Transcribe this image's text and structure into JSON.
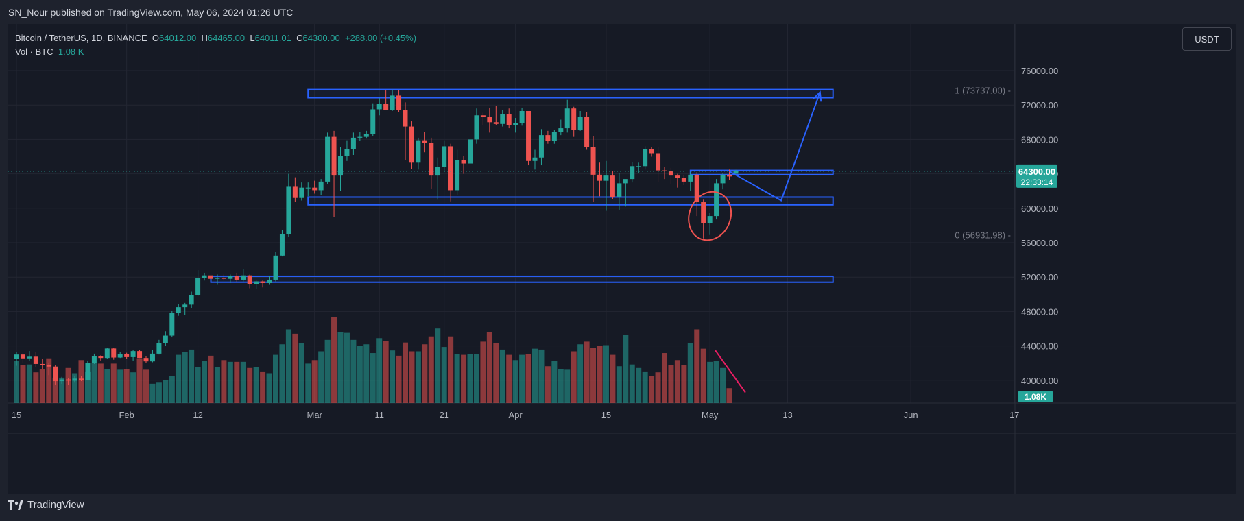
{
  "header": {
    "published": "SN_Nour published on TradingView.com, May 06, 2024 01:26 UTC"
  },
  "legend": {
    "symbol": "Bitcoin / TetherUS, 1D, BINANCE",
    "open_label": "O",
    "open": "64012.00",
    "high_label": "H",
    "high": "64465.00",
    "low_label": "L",
    "low": "64011.01",
    "close_label": "C",
    "close": "64300.00",
    "change": "+288.00 (+0.45%)",
    "vol_label": "Vol · BTC",
    "vol": "1.08 K"
  },
  "currency_button": "USDT",
  "footer": {
    "brand": "TradingView"
  },
  "colors": {
    "up": "#26a69a",
    "down": "#ef5350",
    "zone": "#2962ff",
    "background": "#161a25",
    "annotation": "#e91e63"
  },
  "chart_data": {
    "type": "candlestick",
    "title": "",
    "y_axis": {
      "ylim": [
        37500,
        79000
      ],
      "ticks": [
        "76000.00",
        "72000.00",
        "68000.00",
        "64000.00",
        "60000.00",
        "56000.00",
        "52000.00",
        "48000.00",
        "44000.00",
        "40000.00"
      ],
      "grid": true
    },
    "x_axis": {
      "ticks": [
        {
          "label": "15",
          "date": "2024-01-15"
        },
        {
          "label": "Feb",
          "date": "2024-02-01"
        },
        {
          "label": "12",
          "date": "2024-02-12"
        },
        {
          "label": "Mar",
          "date": "2024-03-01"
        },
        {
          "label": "11",
          "date": "2024-03-11"
        },
        {
          "label": "21",
          "date": "2024-03-21"
        },
        {
          "label": "Apr",
          "date": "2024-04-01"
        },
        {
          "label": "15",
          "date": "2024-04-15"
        },
        {
          "label": "May",
          "date": "2024-05-01"
        },
        {
          "label": "13",
          "date": "2024-05-13"
        },
        {
          "label": "Jun",
          "date": "2024-06-01"
        },
        {
          "label": "17",
          "date": "2024-06-17"
        }
      ]
    },
    "first_date": "2024-01-15",
    "candles": [
      [
        42500,
        43300,
        41700,
        43000
      ],
      [
        43000,
        43200,
        42000,
        42550
      ],
      [
        42550,
        43400,
        42300,
        42750
      ],
      [
        42750,
        43300,
        41500,
        41900
      ],
      [
        41900,
        42500,
        41300,
        41800
      ],
      [
        41800,
        42000,
        40600,
        41600
      ],
      [
        41600,
        41800,
        39500,
        39900
      ],
      [
        39900,
        40400,
        39600,
        40100
      ],
      [
        40100,
        40300,
        39500,
        39950
      ],
      [
        39950,
        40500,
        39800,
        40200
      ],
      [
        40200,
        40500,
        39900,
        40050
      ],
      [
        40050,
        42300,
        40000,
        42000
      ],
      [
        42000,
        43100,
        41900,
        42800
      ],
      [
        42800,
        42900,
        42300,
        42600
      ],
      [
        42600,
        43800,
        42500,
        43700
      ],
      [
        43700,
        43800,
        42400,
        42650
      ],
      [
        42650,
        43300,
        42600,
        43050
      ],
      [
        43050,
        43200,
        42500,
        42700
      ],
      [
        42700,
        43500,
        42300,
        43400
      ],
      [
        43400,
        43500,
        42600,
        42600
      ],
      [
        42600,
        42800,
        42000,
        42200
      ],
      [
        42200,
        43500,
        42100,
        43100
      ],
      [
        43100,
        44700,
        43000,
        44300
      ],
      [
        44300,
        45700,
        44000,
        45200
      ],
      [
        45200,
        48100,
        45000,
        47800
      ],
      [
        47800,
        48900,
        47500,
        48500
      ],
      [
        48500,
        49000,
        47600,
        48800
      ],
      [
        48800,
        50300,
        48400,
        49900
      ],
      [
        49900,
        52800,
        49800,
        51900
      ],
      [
        51900,
        52500,
        51600,
        52200
      ],
      [
        52200,
        52600,
        51300,
        51800
      ],
      [
        51800,
        52300,
        51100,
        51900
      ],
      [
        51900,
        52300,
        51600,
        51800
      ],
      [
        51800,
        52300,
        51300,
        52100
      ],
      [
        52100,
        52500,
        51400,
        51700
      ],
      [
        51700,
        52900,
        51500,
        52200
      ],
      [
        52200,
        52300,
        50700,
        51200
      ],
      [
        51200,
        51600,
        50600,
        51500
      ],
      [
        51500,
        51600,
        50800,
        51300
      ],
      [
        51300,
        52100,
        51100,
        51700
      ],
      [
        51700,
        54900,
        51500,
        54500
      ],
      [
        54500,
        57500,
        54400,
        57000
      ],
      [
        57000,
        64000,
        56700,
        62500
      ],
      [
        62500,
        63600,
        60700,
        61200
      ],
      [
        61200,
        63000,
        60900,
        62400
      ],
      [
        62400,
        63000,
        61400,
        62400
      ],
      [
        62400,
        63200,
        61700,
        62100
      ],
      [
        62100,
        63400,
        61500,
        63100
      ],
      [
        63100,
        68800,
        62800,
        68300
      ],
      [
        68300,
        69000,
        59000,
        63800
      ],
      [
        63800,
        67100,
        62000,
        66100
      ],
      [
        66100,
        67900,
        65500,
        66900
      ],
      [
        66900,
        68800,
        66200,
        68200
      ],
      [
        68200,
        68900,
        67800,
        68300
      ],
      [
        68300,
        69000,
        68100,
        68600
      ],
      [
        68600,
        72200,
        68400,
        71500
      ],
      [
        71500,
        72800,
        70800,
        72100
      ],
      [
        72100,
        73700,
        71400,
        71400
      ],
      [
        71400,
        73800,
        71300,
        73100
      ],
      [
        73100,
        73700,
        71200,
        71400
      ],
      [
        71400,
        72300,
        65600,
        69500
      ],
      [
        69500,
        70100,
        64600,
        65300
      ],
      [
        65300,
        68200,
        64500,
        67900
      ],
      [
        67900,
        68900,
        66500,
        67600
      ],
      [
        67600,
        68200,
        62300,
        63800
      ],
      [
        63800,
        65900,
        61000,
        64800
      ],
      [
        64800,
        67900,
        64200,
        67200
      ],
      [
        67200,
        67500,
        60800,
        62100
      ],
      [
        62100,
        66800,
        61500,
        65600
      ],
      [
        65600,
        66100,
        64000,
        65200
      ],
      [
        65200,
        68300,
        65000,
        68000
      ],
      [
        68000,
        71600,
        67500,
        70800
      ],
      [
        70800,
        71100,
        69700,
        70600
      ],
      [
        70600,
        71700,
        68800,
        70000
      ],
      [
        70000,
        71900,
        69700,
        69800
      ],
      [
        69800,
        71400,
        69500,
        70900
      ],
      [
        70900,
        71600,
        69300,
        69700
      ],
      [
        69700,
        70500,
        68800,
        69900
      ],
      [
        69900,
        71700,
        69600,
        71300
      ],
      [
        71300,
        71300,
        65000,
        65500
      ],
      [
        65500,
        66800,
        64500,
        65900
      ],
      [
        65900,
        69200,
        65000,
        68500
      ],
      [
        68500,
        69000,
        67500,
        67800
      ],
      [
        67800,
        69100,
        67500,
        68900
      ],
      [
        68900,
        70300,
        68500,
        69300
      ],
      [
        69300,
        72600,
        68800,
        71600
      ],
      [
        71600,
        71800,
        68300,
        69100
      ],
      [
        69100,
        71300,
        69000,
        70600
      ],
      [
        70600,
        71200,
        66800,
        67100
      ],
      [
        67100,
        68400,
        60700,
        63900
      ],
      [
        63900,
        65300,
        61400,
        63200
      ],
      [
        63200,
        65500,
        59700,
        63800
      ],
      [
        63800,
        64300,
        61100,
        61300
      ],
      [
        61300,
        64100,
        59800,
        62900
      ],
      [
        62900,
        63300,
        60200,
        63400
      ],
      [
        63400,
        65400,
        63000,
        64900
      ],
      [
        64900,
        65300,
        64100,
        64900
      ],
      [
        64900,
        67200,
        64500,
        66900
      ],
      [
        66900,
        67100,
        66000,
        66400
      ],
      [
        66400,
        67100,
        63000,
        64400
      ],
      [
        64400,
        64800,
        63400,
        64300
      ],
      [
        64300,
        64700,
        62800,
        63800
      ],
      [
        63800,
        64000,
        62400,
        63500
      ],
      [
        63500,
        63900,
        62700,
        63100
      ],
      [
        63100,
        64200,
        62000,
        63900
      ],
      [
        63900,
        64200,
        59100,
        60700
      ],
      [
        60700,
        61000,
        56500,
        58300
      ],
      [
        58300,
        59500,
        56900,
        59100
      ],
      [
        59100,
        63400,
        58700,
        62900
      ],
      [
        62900,
        64100,
        62200,
        63900
      ],
      [
        63900,
        64500,
        63300,
        63700
      ],
      [
        64012,
        64465,
        64011.01,
        64300
      ]
    ],
    "volume_heights": [
      0.48,
      0.43,
      0.44,
      0.35,
      0.39,
      0.51,
      0.29,
      0.29,
      0.4,
      0.34,
      0.49,
      0.36,
      0.46,
      0.45,
      0.39,
      0.45,
      0.38,
      0.39,
      0.35,
      0.51,
      0.38,
      0.22,
      0.24,
      0.26,
      0.31,
      0.55,
      0.58,
      0.61,
      0.41,
      0.48,
      0.54,
      0.41,
      0.49,
      0.47,
      0.47,
      0.47,
      0.4,
      0.41,
      0.36,
      0.34,
      0.55,
      0.67,
      0.84,
      0.79,
      0.68,
      0.45,
      0.49,
      0.59,
      0.72,
      0.98,
      0.81,
      0.8,
      0.72,
      0.65,
      0.67,
      0.57,
      0.74,
      0.71,
      0.6,
      0.54,
      0.69,
      0.59,
      0.59,
      0.67,
      0.76,
      0.85,
      0.64,
      0.76,
      0.56,
      0.55,
      0.56,
      0.56,
      0.7,
      0.81,
      0.68,
      0.61,
      0.55,
      0.49,
      0.55,
      0.56,
      0.62,
      0.61,
      0.42,
      0.48,
      0.39,
      0.38,
      0.59,
      0.67,
      0.7,
      0.63,
      0.65,
      0.66,
      0.55,
      0.42,
      0.78,
      0.44,
      0.4,
      0.36,
      0.31,
      0.35,
      0.57,
      0.43,
      0.49,
      0.43,
      0.68,
      0.84,
      0.62,
      0.47,
      0.48,
      0.4,
      0.17
    ],
    "volume_scale_label": "1.08K",
    "current_price_label": "64300.00",
    "countdown_label": "22:33:14",
    "fib": [
      {
        "label": "1 (73737.00)",
        "price": 73737
      },
      {
        "label": "0 (56931.98)",
        "price": 56931.98
      }
    ],
    "zones": [
      {
        "top": 73800,
        "bottom": 72850,
        "start": "2024-02-29",
        "end": "2024-05-20"
      },
      {
        "top": 64400,
        "bottom": 63900,
        "start": "2024-04-28",
        "end": "2024-05-20"
      },
      {
        "top": 61300,
        "bottom": 60400,
        "start": "2024-02-29",
        "end": "2024-05-20"
      },
      {
        "top": 52100,
        "bottom": 51400,
        "start": "2024-02-14",
        "end": "2024-05-20"
      }
    ],
    "projection_path": [
      {
        "date": "2024-05-04",
        "price": 64300
      },
      {
        "date": "2024-05-12",
        "price": 60900
      },
      {
        "date": "2024-05-18",
        "price": 73500
      }
    ],
    "highlight": {
      "date": "2024-05-01",
      "price": 59100
    },
    "volume_trend_line": [
      {
        "date": "2024-05-01",
        "value": 0.6
      },
      {
        "date": "2024-05-05",
        "value": 0.12
      }
    ]
  }
}
